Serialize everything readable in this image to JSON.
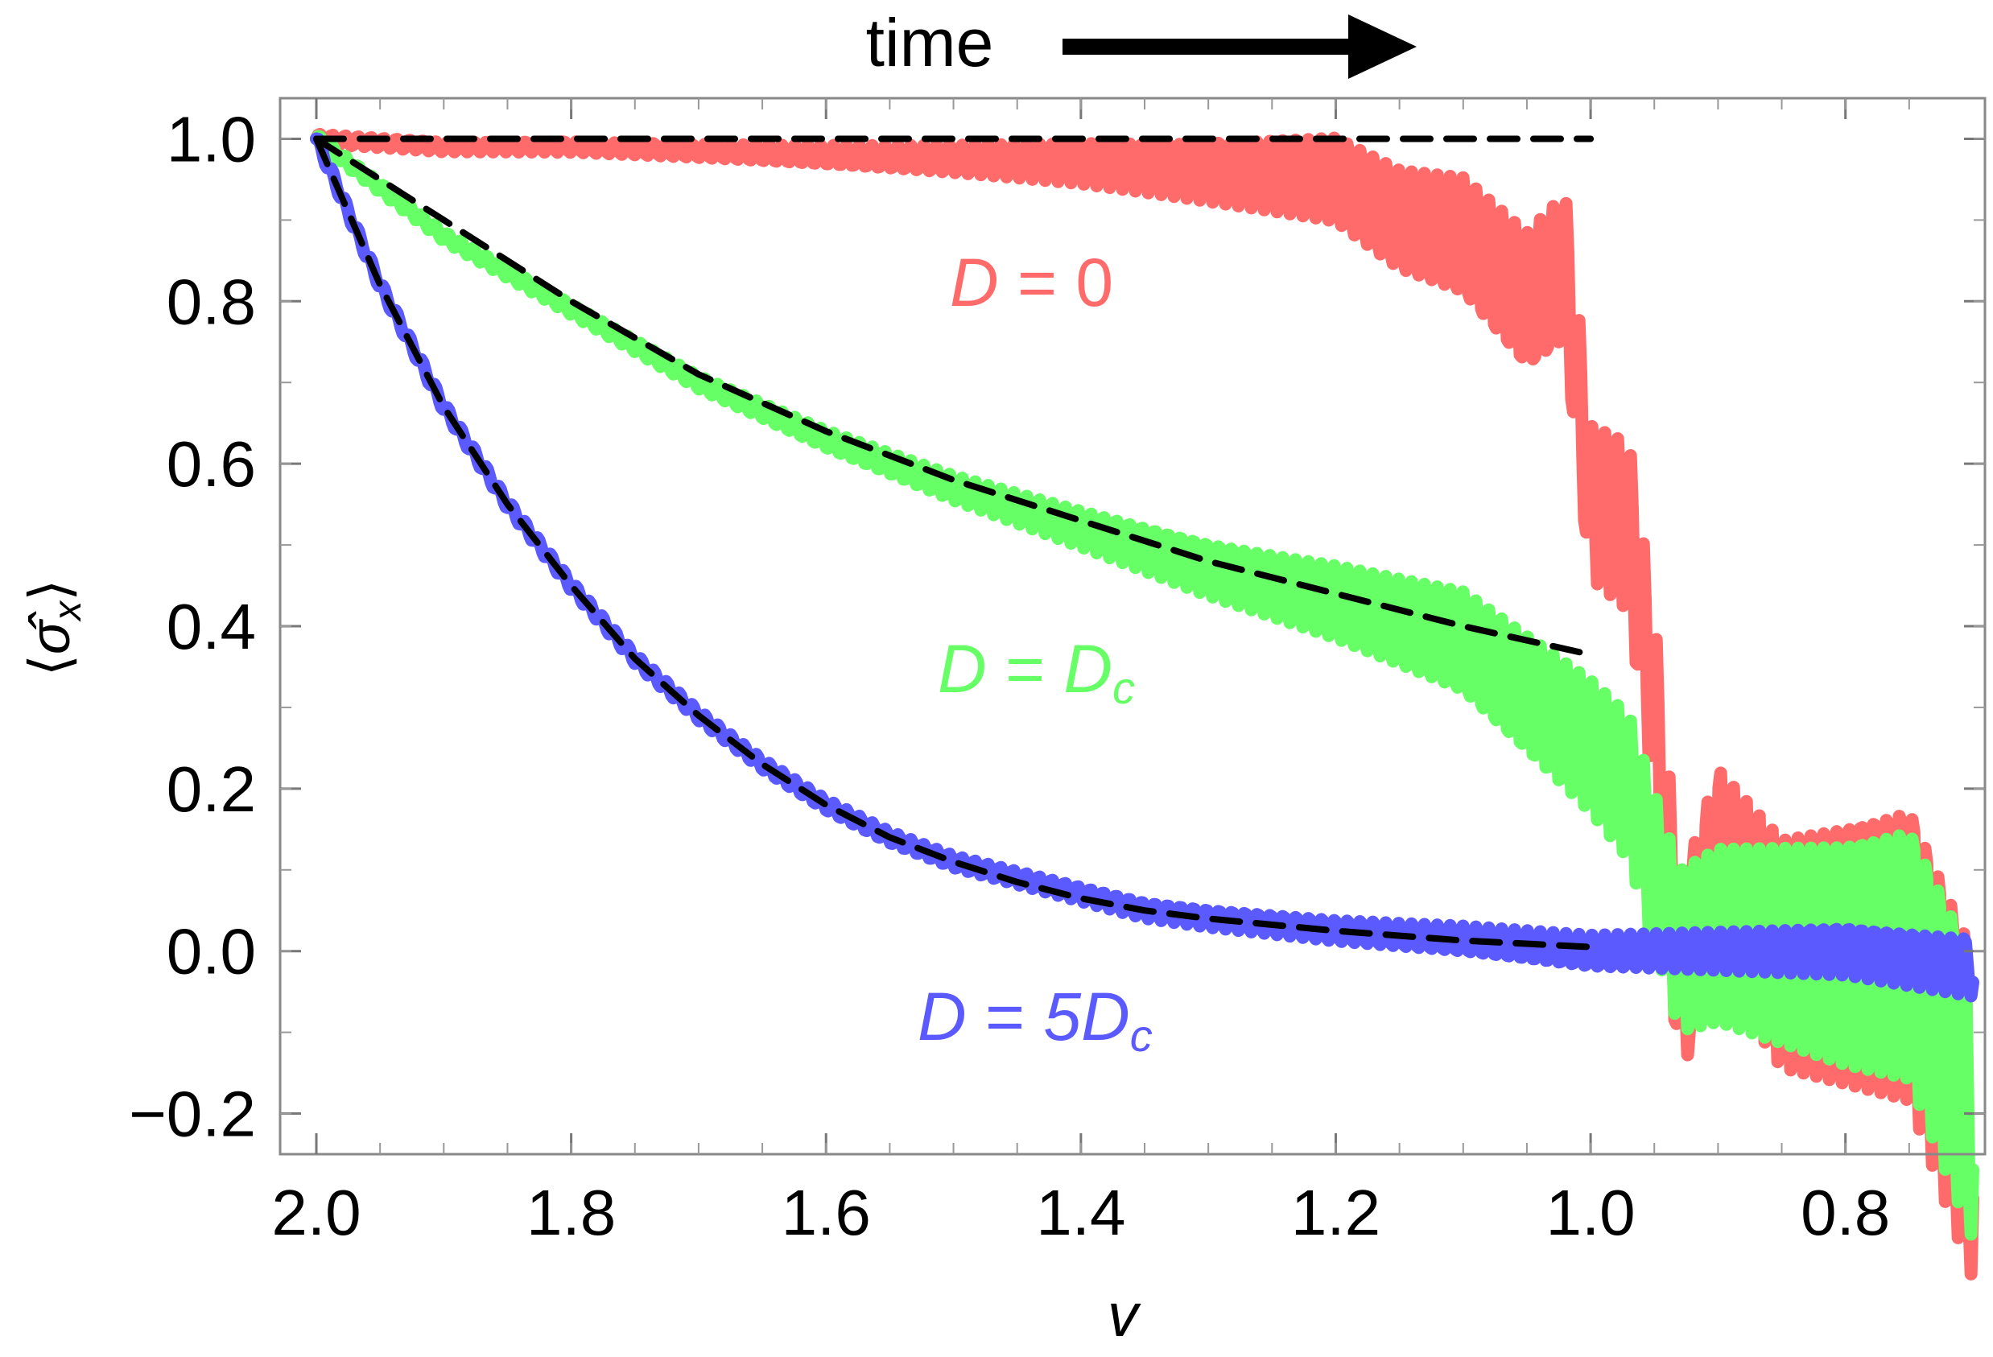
{
  "chart_data": {
    "type": "line",
    "title": "",
    "header": {
      "text": "time",
      "arrow": "right-arrow-icon"
    },
    "xlabel": "v",
    "ylabel": "⟨σ̂x⟩",
    "ylabel_base": "σ̂",
    "ylabel_sub": "x",
    "xlim": [
      2.0,
      0.7
    ],
    "x_reversed": true,
    "ylim": [
      -0.25,
      1.05
    ],
    "xticks": [
      "2.0",
      "1.8",
      "1.6",
      "1.4",
      "1.2",
      "1.0",
      "0.8"
    ],
    "yticks": [
      "1.0",
      "0.8",
      "0.6",
      "0.4",
      "0.2",
      "0.0",
      "−0.2"
    ],
    "grid": false,
    "annotations": [
      {
        "lhs": "D",
        "op": " = ",
        "rhs": "0",
        "rhs_sub": "",
        "series": "D = 0"
      },
      {
        "lhs": "D",
        "op": " = ",
        "rhs": "D",
        "rhs_sub": "c",
        "series": "D = Dc"
      },
      {
        "lhs": "D",
        "op": " = ",
        "rhs": "5D",
        "rhs_sub": "c",
        "series": "D = 5Dc"
      }
    ],
    "series": [
      {
        "name": "D = 0",
        "color": "#ff6b6b",
        "x": [
          2.0,
          1.9,
          1.8,
          1.7,
          1.6,
          1.5,
          1.4,
          1.3,
          1.2,
          1.15,
          1.1,
          1.05,
          1.02,
          1.0,
          0.97,
          0.95,
          0.93,
          0.9,
          0.85,
          0.8,
          0.75,
          0.7
        ],
        "y": [
          1.0,
          0.99,
          0.99,
          0.985,
          0.98,
          0.975,
          0.97,
          0.96,
          0.95,
          0.9,
          0.88,
          0.8,
          0.84,
          0.55,
          0.52,
          0.3,
          -0.04,
          0.1,
          0.0,
          0.0,
          0.0,
          -0.2
        ],
        "oscillation_at_end": 0.2
      },
      {
        "name": "D = Dc",
        "color": "#66ff66",
        "x": [
          2.0,
          1.9,
          1.8,
          1.7,
          1.6,
          1.5,
          1.4,
          1.3,
          1.2,
          1.1,
          1.0,
          0.97,
          0.95,
          0.93,
          0.9,
          0.85,
          0.8,
          0.75,
          0.7
        ],
        "y": [
          1.0,
          0.88,
          0.79,
          0.7,
          0.63,
          0.57,
          0.52,
          0.47,
          0.43,
          0.38,
          0.25,
          0.2,
          0.1,
          0.0,
          0.02,
          0.01,
          0.0,
          0.0,
          -0.18
        ],
        "oscillation_at_end": 0.17
      },
      {
        "name": "D = 5Dc",
        "color": "#5a5aff",
        "x": [
          2.0,
          1.95,
          1.9,
          1.85,
          1.8,
          1.75,
          1.7,
          1.65,
          1.6,
          1.55,
          1.5,
          1.45,
          1.4,
          1.35,
          1.3,
          1.2,
          1.1,
          1.0,
          0.9,
          0.8,
          0.7
        ],
        "y": [
          1.0,
          0.82,
          0.67,
          0.55,
          0.45,
          0.36,
          0.29,
          0.23,
          0.18,
          0.14,
          0.11,
          0.09,
          0.07,
          0.05,
          0.04,
          0.025,
          0.015,
          0.0,
          0.0,
          0.0,
          -0.02
        ],
        "oscillation_at_end": 0.03
      },
      {
        "name": "",
        "color": "#000000",
        "style": "dashed",
        "x": [
          2.0,
          1.0
        ],
        "y": [
          1.0,
          1.0
        ]
      },
      {
        "name": "",
        "color": "#000000",
        "style": "dashed",
        "x": [
          2.0,
          1.9,
          1.8,
          1.7,
          1.6,
          1.5,
          1.4,
          1.3,
          1.2,
          1.1,
          1.0
        ],
        "y": [
          1.0,
          0.9,
          0.8,
          0.71,
          0.64,
          0.58,
          0.53,
          0.48,
          0.44,
          0.4,
          0.365
        ]
      },
      {
        "name": "",
        "color": "#000000",
        "style": "dashed",
        "x": [
          2.0,
          1.95,
          1.9,
          1.85,
          1.8,
          1.75,
          1.7,
          1.65,
          1.6,
          1.55,
          1.5,
          1.45,
          1.4,
          1.35,
          1.3,
          1.2,
          1.1,
          1.0
        ],
        "y": [
          1.0,
          0.82,
          0.67,
          0.55,
          0.45,
          0.36,
          0.29,
          0.23,
          0.18,
          0.14,
          0.11,
          0.085,
          0.065,
          0.05,
          0.04,
          0.025,
          0.013,
          0.005
        ]
      }
    ]
  }
}
